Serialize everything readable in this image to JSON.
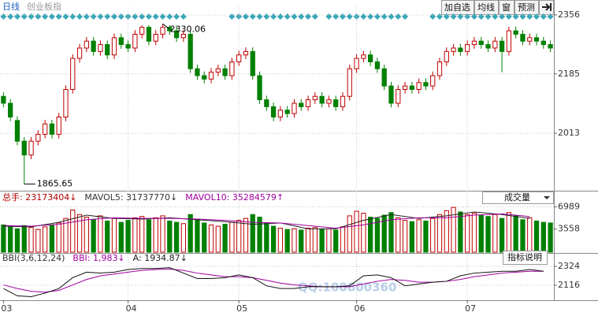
{
  "header": {
    "period": "日线",
    "name": "创业板指",
    "buttons": [
      "加自选",
      "均线",
      "窗",
      "预测"
    ]
  },
  "chart_data": [
    {
      "type": "candlestick",
      "up_color": "#c00000",
      "down_color": "#008000",
      "categories": [
        "03",
        null,
        null,
        null,
        null,
        null,
        null,
        null,
        null,
        null,
        null,
        null,
        null,
        null,
        null,
        null,
        null,
        null,
        "04",
        null,
        null,
        null,
        null,
        null,
        null,
        null,
        null,
        null,
        null,
        null,
        null,
        null,
        null,
        null,
        "05",
        null,
        null,
        null,
        null,
        null,
        null,
        null,
        null,
        null,
        null,
        null,
        null,
        null,
        null,
        null,
        null,
        "06",
        null,
        null,
        null,
        null,
        null,
        null,
        null,
        null,
        null,
        null,
        null,
        null,
        null,
        null,
        null,
        "07",
        null,
        null,
        null,
        null,
        null,
        null,
        null,
        null,
        null,
        null,
        null,
        null
      ],
      "open": [
        2120,
        2100,
        2050,
        1990,
        1950,
        1990,
        2010,
        2040,
        2010,
        2060,
        2140,
        2230,
        2260,
        2280,
        2250,
        2270,
        2240,
        2290,
        2270,
        2260,
        2300,
        2320,
        2280,
        2300,
        2320,
        2310,
        2290,
        2300,
        2200,
        2180,
        2170,
        2190,
        2200,
        2180,
        2220,
        2240,
        2250,
        2180,
        2110,
        2090,
        2060,
        2080,
        2070,
        2100,
        2090,
        2110,
        2120,
        2100,
        2110,
        2090,
        2120,
        2200,
        2230,
        2240,
        2220,
        2200,
        2150,
        2100,
        2140,
        2150,
        2140,
        2160,
        2150,
        2180,
        2220,
        2250,
        2260,
        2250,
        2270,
        2280,
        2270,
        2260,
        2280,
        2250,
        2310,
        2300,
        2280,
        2290,
        2280,
        2270
      ],
      "high": [
        2132,
        2112,
        2062,
        2002,
        2002,
        2022,
        2052,
        2052,
        2072,
        2152,
        2242,
        2272,
        2292,
        2292,
        2282,
        2282,
        2302,
        2302,
        2282,
        2312,
        2326,
        2326,
        2312,
        2330.06,
        2326,
        2322,
        2312,
        2312,
        2212,
        2192,
        2202,
        2212,
        2212,
        2232,
        2252,
        2262,
        2262,
        2192,
        2122,
        2102,
        2092,
        2092,
        2112,
        2112,
        2122,
        2132,
        2132,
        2122,
        2122,
        2132,
        2212,
        2242,
        2252,
        2252,
        2232,
        2212,
        2162,
        2152,
        2162,
        2162,
        2172,
        2172,
        2192,
        2232,
        2262,
        2272,
        2272,
        2282,
        2292,
        2292,
        2282,
        2292,
        2292,
        2322,
        2322,
        2312,
        2302,
        2302,
        2292,
        2282
      ],
      "low": [
        2088,
        2048,
        1978,
        1865.65,
        1938,
        1978,
        1998,
        1998,
        1998,
        2048,
        2128,
        2218,
        2248,
        2238,
        2238,
        2228,
        2228,
        2258,
        2248,
        2248,
        2288,
        2268,
        2268,
        2288,
        2298,
        2278,
        2278,
        2188,
        2168,
        2158,
        2158,
        2178,
        2168,
        2168,
        2208,
        2228,
        2168,
        2098,
        2078,
        2048,
        2048,
        2058,
        2058,
        2078,
        2078,
        2098,
        2088,
        2088,
        2078,
        2078,
        2108,
        2188,
        2218,
        2208,
        2188,
        2138,
        2088,
        2088,
        2128,
        2128,
        2128,
        2138,
        2138,
        2168,
        2208,
        2238,
        2238,
        2238,
        2258,
        2258,
        2248,
        2248,
        2190,
        2238,
        2288,
        2268,
        2268,
        2268,
        2258,
        2248
      ],
      "close": [
        2100,
        2060,
        1990,
        1950,
        1990,
        2010,
        2040,
        2010,
        2060,
        2140,
        2230,
        2260,
        2280,
        2250,
        2270,
        2240,
        2290,
        2270,
        2260,
        2300,
        2320,
        2280,
        2300,
        2320,
        2310,
        2290,
        2300,
        2200,
        2180,
        2170,
        2190,
        2200,
        2180,
        2220,
        2240,
        2250,
        2180,
        2110,
        2090,
        2060,
        2080,
        2070,
        2100,
        2090,
        2110,
        2120,
        2100,
        2110,
        2090,
        2120,
        2200,
        2230,
        2240,
        2220,
        2200,
        2150,
        2100,
        2140,
        2150,
        2140,
        2160,
        2150,
        2180,
        2220,
        2250,
        2260,
        2250,
        2270,
        2280,
        2270,
        2260,
        2280,
        2250,
        2310,
        2300,
        2280,
        2290,
        2280,
        2270,
        2260
      ],
      "ylim": [
        1851,
        2381
      ],
      "yticks": [
        2013,
        2185,
        2356
      ],
      "grid": true
    },
    {
      "type": "bar",
      "legend": [
        {
          "text": "总手: 23173404↓",
          "color": "#b00000"
        },
        {
          "text": "MAVOL5: 31737770↓",
          "color": "#333333"
        },
        {
          "text": "MAVOL10: 35284579↑",
          "color": "#a000a0"
        }
      ],
      "dropdown": "成交量",
      "values": [
        4200,
        3900,
        3600,
        4100,
        3800,
        3500,
        3900,
        4200,
        4500,
        5200,
        6500,
        5800,
        5400,
        5000,
        5600,
        4800,
        5200,
        4600,
        4900,
        5300,
        5500,
        5000,
        5300,
        5600,
        4800,
        4600,
        4400,
        5800,
        5100,
        4500,
        4200,
        4000,
        4300,
        4600,
        4900,
        5200,
        5800,
        5400,
        4500,
        4000,
        3700,
        3500,
        3600,
        3400,
        3700,
        3800,
        3500,
        3600,
        3400,
        3900,
        5600,
        6300,
        6000,
        5400,
        5200,
        5700,
        6100,
        5300,
        4900,
        4700,
        5000,
        4800,
        5200,
        5800,
        6400,
        6900,
        6200,
        5800,
        6000,
        5700,
        5500,
        5800,
        5200,
        6100,
        5600,
        5000,
        5300,
        4800,
        4600,
        4500
      ],
      "lines": [
        {
          "color": "#222222",
          "x": [
            0,
            4,
            8,
            12,
            16,
            20,
            24,
            28,
            32,
            36,
            40,
            44,
            48,
            52,
            56,
            60,
            64,
            68,
            72,
            76
          ],
          "values": [
            4000,
            3900,
            4600,
            5700,
            5200,
            5100,
            5300,
            5000,
            4700,
            4300,
            4500,
            3600,
            3600,
            4900,
            5800,
            5200,
            5600,
            6200,
            5800,
            5200
          ]
        },
        {
          "color": "#a000a0",
          "x": [
            0,
            4,
            8,
            12,
            16,
            20,
            24,
            28,
            32,
            36,
            40,
            44,
            48,
            52,
            56,
            60,
            64,
            68,
            72,
            76
          ],
          "values": [
            4100,
            4000,
            4300,
            5000,
            5300,
            5200,
            5200,
            5100,
            4900,
            4600,
            4500,
            4100,
            3700,
            4200,
            5000,
            5300,
            5300,
            5700,
            5900,
            5500
          ]
        }
      ],
      "ylim": [
        0,
        8500
      ],
      "yticks": [
        3558,
        6989
      ],
      "grid": true
    },
    {
      "type": "line",
      "legend": [
        {
          "text": "BBI(3,6,12,24)",
          "color": "#333333"
        },
        {
          "text": "BBI: 1,983↓",
          "color": "#a000a0"
        },
        {
          "text": "A: 1934.87↓",
          "color": "#222222"
        }
      ],
      "button": "指标说明",
      "watermark": "QQ:100800360",
      "series": [
        {
          "color": "#a000a0",
          "x": [
            0,
            2,
            4,
            6,
            8,
            10,
            12,
            14,
            16,
            18,
            20,
            22,
            24,
            26,
            28,
            30,
            32,
            34,
            36,
            38,
            40,
            42,
            44,
            46,
            48,
            50,
            52,
            54,
            56,
            58,
            60,
            62,
            64,
            66,
            68,
            70,
            72,
            74,
            76,
            78
          ],
          "values": [
            2120,
            2080,
            2050,
            2040,
            2060,
            2120,
            2180,
            2220,
            2240,
            2260,
            2280,
            2290,
            2295,
            2280,
            2250,
            2230,
            2210,
            2210,
            2200,
            2170,
            2140,
            2120,
            2110,
            2100,
            2100,
            2100,
            2130,
            2160,
            2180,
            2170,
            2150,
            2150,
            2160,
            2180,
            2210,
            2230,
            2250,
            2260,
            2270,
            2270
          ]
        },
        {
          "color": "#111111",
          "x": [
            0,
            2,
            4,
            6,
            8,
            10,
            12,
            14,
            16,
            18,
            20,
            22,
            24,
            26,
            28,
            30,
            32,
            34,
            36,
            38,
            40,
            42,
            44,
            46,
            48,
            50,
            52,
            54,
            56,
            58,
            60,
            62,
            64,
            66,
            68,
            70,
            72,
            74,
            76,
            78
          ],
          "values": [
            2080,
            2000,
            1990,
            2030,
            2080,
            2200,
            2260,
            2250,
            2260,
            2290,
            2300,
            2300,
            2310,
            2250,
            2190,
            2190,
            2200,
            2230,
            2200,
            2110,
            2080,
            2080,
            2100,
            2100,
            2100,
            2110,
            2220,
            2230,
            2200,
            2110,
            2130,
            2150,
            2160,
            2220,
            2250,
            2260,
            2270,
            2270,
            2290,
            2270
          ]
        }
      ],
      "ylim": [
        1960,
        2463
      ],
      "yticks": [
        2116,
        2324
      ],
      "grid": true
    }
  ]
}
